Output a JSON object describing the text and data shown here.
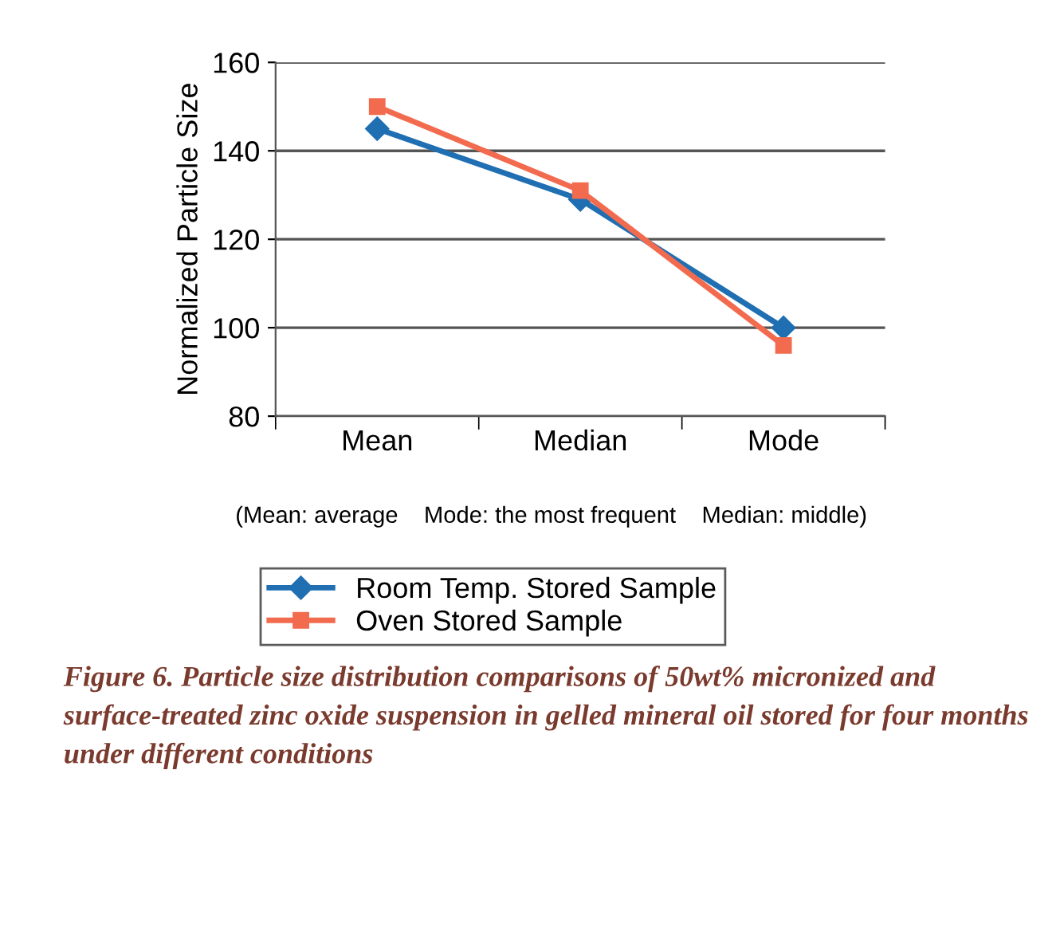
{
  "chart_data": {
    "type": "line",
    "ylabel": "Normalized Particle Size",
    "categories": [
      "Mean",
      "Median",
      "Mode"
    ],
    "series": [
      {
        "name": "Room Temp. Stored Sample",
        "color": "#1f6fb2",
        "marker": "diamond",
        "values": [
          145,
          129,
          100
        ]
      },
      {
        "name": "Oven Stored Sample",
        "color": "#f26b4f",
        "marker": "square",
        "values": [
          150,
          131,
          96
        ]
      }
    ],
    "ylim": [
      80,
      160
    ],
    "yticks": [
      80,
      100,
      120,
      140,
      160
    ],
    "grid": "y",
    "legend": "bottom",
    "line_style": "solid",
    "annotations": [
      "(Mean: average    Mode: the most frequent    Median: middle)",
      "Figure 6. Particle size distribution comparisons of 50wt% micronized and surface-treated zinc oxide suspension in gelled mineral oil stored for four months under different conditions"
    ]
  }
}
